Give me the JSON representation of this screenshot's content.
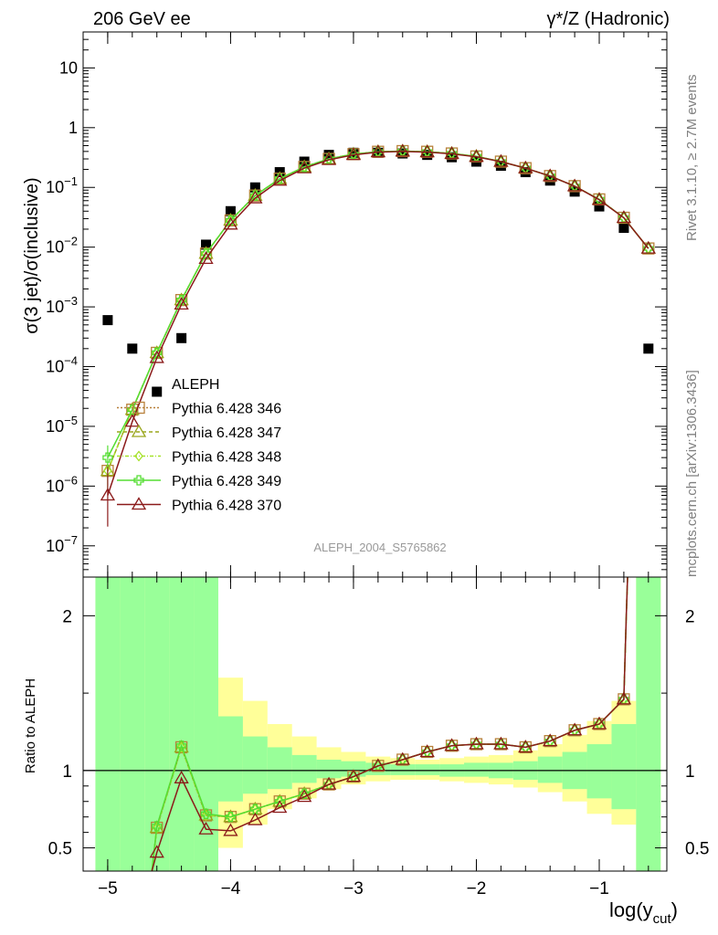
{
  "header": {
    "left": "206 GeV ee",
    "right": "γ*/Z (Hadronic)"
  },
  "side_labels": {
    "top": "Rivet 3.1.10, ≥ 2.7M events",
    "bottom": "mcplots.cern.ch [arXiv:1306.3436]"
  },
  "analysis_id": "ALEPH_2004_S5765862",
  "colors": {
    "data": "#000000",
    "s346": "#b8803a",
    "s347": "#9aa61c",
    "s348": "#a6e22a",
    "s349": "#55dd33",
    "s370": "#8b1a1a",
    "band_inner": "#99ff99",
    "band_outer": "#ffff99"
  },
  "chart_data": [
    {
      "type": "scatter",
      "panel": "main",
      "ylabel": "σ(3 jet)/σ(inclusive)",
      "yscale": "log",
      "ylim": [
        3e-08,
        40
      ],
      "xlim": [
        -5.2,
        -0.45
      ],
      "yticks": [
        {
          "v": 1e-07,
          "base": "10",
          "exp": "−7"
        },
        {
          "v": 1e-06,
          "base": "10",
          "exp": "−6"
        },
        {
          "v": 1e-05,
          "base": "10",
          "exp": "−5"
        },
        {
          "v": 0.0001,
          "base": "10",
          "exp": "−4"
        },
        {
          "v": 0.001,
          "base": "10",
          "exp": "−3"
        },
        {
          "v": 0.01,
          "base": "10",
          "exp": "−2"
        },
        {
          "v": 0.1,
          "base": "10",
          "exp": "−1"
        },
        {
          "v": 1,
          "base": "1",
          "exp": ""
        },
        {
          "v": 10,
          "base": "10",
          "exp": ""
        }
      ],
      "x": [
        -5.0,
        -4.8,
        -4.6,
        -4.4,
        -4.2,
        -4.0,
        -3.8,
        -3.6,
        -3.4,
        -3.2,
        -3.0,
        -2.8,
        -2.6,
        -2.4,
        -2.2,
        -2.0,
        -1.8,
        -1.6,
        -1.4,
        -1.2,
        -1.0,
        -0.8,
        -0.6
      ],
      "legend": {
        "position": "middle-left",
        "entries": [
          "ALEPH",
          "Pythia 6.428 346",
          "Pythia 6.428 347",
          "Pythia 6.428 348",
          "Pythia 6.428 349",
          "Pythia 6.428 370"
        ]
      },
      "series": [
        {
          "name": "ALEPH",
          "marker": "square",
          "values": [
            0.0006,
            0.0002,
            3.8e-05,
            0.0003,
            0.011,
            0.04,
            0.1,
            0.18,
            0.27,
            0.35,
            0.38,
            0.38,
            0.37,
            0.35,
            0.32,
            0.27,
            0.23,
            0.18,
            0.13,
            0.085,
            0.048,
            0.021,
            0.0002
          ]
        },
        {
          "name": "Pythia 6.428 346",
          "marker": "open-square",
          "dash": "2,2",
          "values": [
            1.8e-06,
            1.9e-05,
            0.00017,
            0.0013,
            0.0078,
            0.028,
            0.073,
            0.14,
            0.22,
            0.3,
            0.36,
            0.395,
            0.405,
            0.395,
            0.37,
            0.33,
            0.27,
            0.21,
            0.155,
            0.105,
            0.063,
            0.031,
            0.0095
          ]
        },
        {
          "name": "Pythia 6.428 347",
          "marker": "open-triangle",
          "dash": "4,3",
          "values": [
            1.8e-06,
            1.9e-05,
            0.00017,
            0.0013,
            0.0078,
            0.028,
            0.073,
            0.14,
            0.22,
            0.3,
            0.36,
            0.395,
            0.405,
            0.395,
            0.37,
            0.33,
            0.27,
            0.21,
            0.155,
            0.105,
            0.063,
            0.031,
            0.0095
          ]
        },
        {
          "name": "Pythia 6.428 348",
          "marker": "open-diamond",
          "dash": "4,2,1,2",
          "values": [
            1.8e-06,
            1.9e-05,
            0.00017,
            0.0013,
            0.0078,
            0.028,
            0.073,
            0.14,
            0.22,
            0.3,
            0.36,
            0.395,
            0.405,
            0.395,
            0.37,
            0.33,
            0.27,
            0.21,
            0.155,
            0.105,
            0.063,
            0.031,
            0.0095
          ]
        },
        {
          "name": "Pythia 6.428 349",
          "marker": "cross",
          "dash": "",
          "values": [
            3e-06,
            1.9e-05,
            0.00017,
            0.0013,
            0.0078,
            0.028,
            0.073,
            0.14,
            0.22,
            0.3,
            0.36,
            0.395,
            0.405,
            0.395,
            0.37,
            0.33,
            0.27,
            0.21,
            0.155,
            0.105,
            0.063,
            0.031,
            0.0095
          ]
        },
        {
          "name": "Pythia 6.428 370",
          "marker": "open-triangle",
          "dash": "",
          "values": [
            7e-07,
            1.2e-05,
            0.00014,
            0.0011,
            0.0064,
            0.024,
            0.066,
            0.13,
            0.21,
            0.29,
            0.35,
            0.39,
            0.4,
            0.39,
            0.365,
            0.325,
            0.27,
            0.21,
            0.155,
            0.105,
            0.062,
            0.031,
            0.0095
          ]
        }
      ]
    },
    {
      "type": "line",
      "panel": "ratio",
      "ylabel": "Ratio to ALEPH",
      "xlabel_base": "log(y",
      "xlabel_sub": "cut",
      "xlabel_end": ")",
      "ylim": [
        0.35,
        2.25
      ],
      "xlim": [
        -5.2,
        -0.45
      ],
      "xticks": [
        -5,
        -4,
        -3,
        -2,
        -1
      ],
      "xtick_labels": [
        "−5",
        "−4",
        "−3",
        "−2",
        "−1"
      ],
      "yticks": [
        0.5,
        1,
        2
      ],
      "ytick_labels": [
        "0.5",
        "1",
        "2"
      ],
      "reference_line": 1,
      "band_edges": [
        -5.1,
        -4.9,
        -4.7,
        -4.5,
        -4.3,
        -4.1,
        -3.9,
        -3.7,
        -3.5,
        -3.3,
        -3.1,
        -2.9,
        -2.7,
        -2.5,
        -2.3,
        -2.1,
        -1.9,
        -1.7,
        -1.5,
        -1.3,
        -1.1,
        -0.9,
        -0.7,
        -0.5
      ],
      "band_inner": [
        [
          0,
          3
        ],
        [
          0,
          3
        ],
        [
          0,
          3
        ],
        [
          0,
          3
        ],
        [
          0,
          3
        ],
        [
          0.8,
          1.35
        ],
        [
          0.85,
          1.22
        ],
        [
          0.88,
          1.15
        ],
        [
          0.92,
          1.1
        ],
        [
          0.95,
          1.07
        ],
        [
          0.96,
          1.06
        ],
        [
          0.97,
          1.05
        ],
        [
          0.97,
          1.04
        ],
        [
          0.97,
          1.04
        ],
        [
          0.96,
          1.04
        ],
        [
          0.96,
          1.05
        ],
        [
          0.95,
          1.05
        ],
        [
          0.94,
          1.06
        ],
        [
          0.92,
          1.09
        ],
        [
          0.88,
          1.12
        ],
        [
          0.82,
          1.17
        ],
        [
          0.75,
          1.3
        ],
        [
          0,
          3
        ]
      ],
      "band_outer": [
        [
          0,
          3
        ],
        [
          0,
          3
        ],
        [
          0,
          3
        ],
        [
          0,
          3
        ],
        [
          0,
          3
        ],
        [
          0.5,
          1.6
        ],
        [
          0.65,
          1.45
        ],
        [
          0.75,
          1.3
        ],
        [
          0.82,
          1.22
        ],
        [
          0.88,
          1.15
        ],
        [
          0.91,
          1.12
        ],
        [
          0.93,
          1.09
        ],
        [
          0.94,
          1.08
        ],
        [
          0.94,
          1.07
        ],
        [
          0.93,
          1.08
        ],
        [
          0.92,
          1.09
        ],
        [
          0.91,
          1.1
        ],
        [
          0.89,
          1.13
        ],
        [
          0.86,
          1.17
        ],
        [
          0.8,
          1.23
        ],
        [
          0.72,
          1.32
        ],
        [
          0.65,
          1.45
        ],
        [
          0,
          3
        ]
      ],
      "series": [
        {
          "name": "Pythia 6.428 346",
          "x": [
            -4.6,
            -4.4,
            -4.2,
            -4.0,
            -3.8,
            -3.6,
            -3.4,
            -3.2,
            -3.0,
            -2.8,
            -2.6,
            -2.4,
            -2.2,
            -2.0,
            -1.8,
            -1.6,
            -1.4,
            -1.2,
            -1.0,
            -0.8
          ],
          "values": [
            0.63,
            1.15,
            0.71,
            0.7,
            0.75,
            0.8,
            0.85,
            0.91,
            0.96,
            1.03,
            1.07,
            1.12,
            1.16,
            1.17,
            1.17,
            1.15,
            1.19,
            1.26,
            1.3,
            1.46
          ]
        },
        {
          "name": "Pythia 6.428 347",
          "x": [
            -4.6,
            -4.4,
            -4.2,
            -4.0,
            -3.8,
            -3.6,
            -3.4,
            -3.2,
            -3.0,
            -2.8,
            -2.6,
            -2.4,
            -2.2,
            -2.0,
            -1.8,
            -1.6,
            -1.4,
            -1.2,
            -1.0,
            -0.8
          ],
          "values": [
            0.63,
            1.15,
            0.71,
            0.7,
            0.75,
            0.8,
            0.85,
            0.91,
            0.96,
            1.03,
            1.07,
            1.12,
            1.16,
            1.17,
            1.17,
            1.15,
            1.19,
            1.26,
            1.3,
            1.46
          ]
        },
        {
          "name": "Pythia 6.428 348",
          "x": [
            -4.6,
            -4.4,
            -4.2,
            -4.0,
            -3.8,
            -3.6,
            -3.4,
            -3.2,
            -3.0,
            -2.8,
            -2.6,
            -2.4,
            -2.2,
            -2.0,
            -1.8,
            -1.6,
            -1.4,
            -1.2,
            -1.0,
            -0.8
          ],
          "values": [
            0.63,
            1.15,
            0.71,
            0.7,
            0.75,
            0.8,
            0.85,
            0.91,
            0.96,
            1.03,
            1.07,
            1.12,
            1.16,
            1.17,
            1.17,
            1.15,
            1.19,
            1.26,
            1.3,
            1.46
          ]
        },
        {
          "name": "Pythia 6.428 349",
          "x": [
            -4.6,
            -4.4,
            -4.2,
            -4.0,
            -3.8,
            -3.6,
            -3.4,
            -3.2,
            -3.0,
            -2.8,
            -2.6,
            -2.4,
            -2.2,
            -2.0,
            -1.8,
            -1.6,
            -1.4,
            -1.2,
            -1.0,
            -0.8
          ],
          "values": [
            0.64,
            1.16,
            0.72,
            0.7,
            0.75,
            0.8,
            0.85,
            0.91,
            0.96,
            1.03,
            1.07,
            1.12,
            1.16,
            1.17,
            1.17,
            1.15,
            1.19,
            1.26,
            1.3,
            1.46
          ]
        },
        {
          "name": "Pythia 6.428 370",
          "x": [
            -4.6,
            -4.4,
            -4.2,
            -4.0,
            -3.8,
            -3.6,
            -3.4,
            -3.2,
            -3.0,
            -2.8,
            -2.6,
            -2.4,
            -2.2,
            -2.0,
            -1.8,
            -1.6,
            -1.4,
            -1.2,
            -1.0,
            -0.8
          ],
          "values": [
            0.47,
            0.95,
            0.62,
            0.61,
            0.68,
            0.76,
            0.83,
            0.91,
            0.96,
            1.03,
            1.07,
            1.12,
            1.16,
            1.17,
            1.17,
            1.15,
            1.19,
            1.26,
            1.3,
            1.46
          ]
        }
      ]
    }
  ]
}
